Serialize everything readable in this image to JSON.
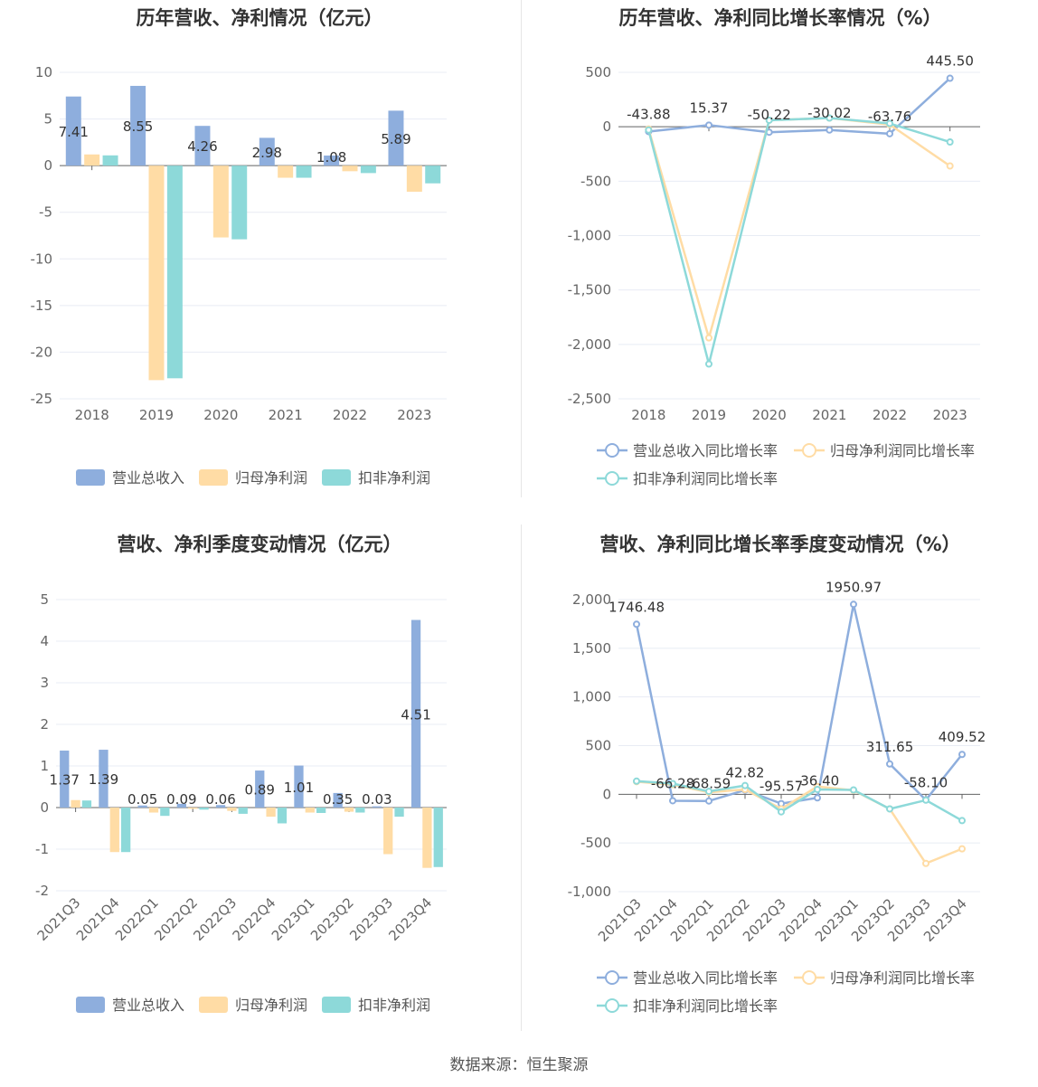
{
  "colors": {
    "rev": "#8eaedd",
    "parent": "#ffdca5",
    "deduct": "#8dd9d9",
    "axis": "#888",
    "grid": "#e8ecf4",
    "label": "#333"
  },
  "source": "数据来源：恒生聚源",
  "chart_data": [
    {
      "type": "bar",
      "title": "历年营收、净利情况（亿元）",
      "categories": [
        "2018",
        "2019",
        "2020",
        "2021",
        "2022",
        "2023"
      ],
      "ylim": [
        -25,
        10
      ],
      "yticks": [
        10,
        5,
        0,
        -5,
        -10,
        -15,
        -20,
        -25
      ],
      "series": [
        {
          "name": "营业总收入",
          "values": [
            7.41,
            8.55,
            4.26,
            2.98,
            1.08,
            5.89
          ],
          "labels": [
            "7.41",
            "8.55",
            "4.26",
            "2.98",
            "1.08",
            "5.89"
          ]
        },
        {
          "name": "归母净利润",
          "values": [
            1.2,
            -23.0,
            -7.7,
            -1.3,
            -0.6,
            -2.8
          ]
        },
        {
          "name": "扣非净利润",
          "values": [
            1.1,
            -22.8,
            -7.9,
            -1.3,
            -0.8,
            -1.9
          ]
        }
      ],
      "legend": "bottom",
      "grid": true
    },
    {
      "type": "line",
      "title": "历年营收、净利同比增长率情况（%）",
      "categories": [
        "2018",
        "2019",
        "2020",
        "2021",
        "2022",
        "2023"
      ],
      "ylim": [
        -2500,
        500
      ],
      "yticks": [
        500,
        0,
        -500,
        -1000,
        -1500,
        -2000,
        -2500
      ],
      "ytick_labels": [
        "500",
        "0",
        "-500",
        "-1,000",
        "-1,500",
        "-2,000",
        "-2,500"
      ],
      "series": [
        {
          "name": "营业总收入同比增长率",
          "values": [
            -43.88,
            15.37,
            -50.22,
            -30.02,
            -63.76,
            445.5
          ],
          "labels": [
            "-43.88",
            "15.37",
            "-50.22",
            "-30.02",
            "-63.76",
            "445.50"
          ]
        },
        {
          "name": "归母净利润同比增长率",
          "values": [
            -20,
            -1940,
            60,
            80,
            20,
            -360
          ]
        },
        {
          "name": "扣非净利润同比增长率",
          "values": [
            -30,
            -2180,
            60,
            80,
            30,
            -140
          ]
        }
      ],
      "legend": "bottom",
      "grid": true
    },
    {
      "type": "bar",
      "title": "营收、净利季度变动情况（亿元）",
      "categories": [
        "2021Q3",
        "2021Q4",
        "2022Q1",
        "2022Q2",
        "2022Q3",
        "2022Q4",
        "2023Q1",
        "2023Q2",
        "2023Q3",
        "2023Q4"
      ],
      "ylim": [
        -2,
        5
      ],
      "yticks": [
        5,
        4,
        3,
        2,
        1,
        0,
        -1,
        -2
      ],
      "series": [
        {
          "name": "营业总收入",
          "values": [
            1.37,
            1.39,
            0.05,
            0.09,
            0.06,
            0.89,
            1.01,
            0.35,
            0.03,
            4.51
          ],
          "labels": [
            "1.37",
            "1.39",
            "0.05",
            "0.09",
            "0.06",
            "0.89",
            "1.01",
            "0.35",
            "0.03",
            "4.51"
          ]
        },
        {
          "name": "归母净利润",
          "values": [
            0.18,
            -1.07,
            -0.12,
            -0.03,
            -0.08,
            -0.22,
            -0.12,
            -0.1,
            -1.12,
            -1.45
          ]
        },
        {
          "name": "扣非净利润",
          "values": [
            0.17,
            -1.07,
            -0.2,
            -0.05,
            -0.15,
            -0.38,
            -0.13,
            -0.12,
            -0.22,
            -1.43
          ]
        }
      ],
      "legend": "bottom",
      "grid": true
    },
    {
      "type": "line",
      "title": "营收、净利同比增长率季度变动情况（%）",
      "categories": [
        "2021Q3",
        "2021Q4",
        "2022Q1",
        "2022Q2",
        "2022Q3",
        "2022Q4",
        "2023Q1",
        "2023Q2",
        "2023Q3",
        "2023Q4"
      ],
      "ylim": [
        -1000,
        2000
      ],
      "yticks": [
        2000,
        1500,
        1000,
        500,
        0,
        -500,
        -1000
      ],
      "ytick_labels": [
        "2,000",
        "1,500",
        "1,000",
        "500",
        "0",
        "-500",
        "-1,000"
      ],
      "series": [
        {
          "name": "营业总收入同比增长率",
          "values": [
            1746.48,
            -66.28,
            -68.59,
            42.82,
            -95.57,
            -36.4,
            1950.97,
            311.65,
            -58.1,
            409.52
          ],
          "labels": [
            "1746.48",
            "-66.28",
            "-68.59",
            "42.82",
            "-95.57",
            "-36.40",
            "1950.97",
            "311.65",
            "-58.10",
            "409.52"
          ]
        },
        {
          "name": "归母净利润同比增长率",
          "values": [
            130,
            100,
            20,
            50,
            -150,
            80,
            40,
            -150,
            -710,
            -560
          ]
        },
        {
          "name": "扣非净利润同比增长率",
          "values": [
            135,
            110,
            30,
            90,
            -180,
            50,
            45,
            -150,
            -60,
            -270
          ]
        }
      ],
      "legend": "bottom",
      "grid": true
    }
  ]
}
